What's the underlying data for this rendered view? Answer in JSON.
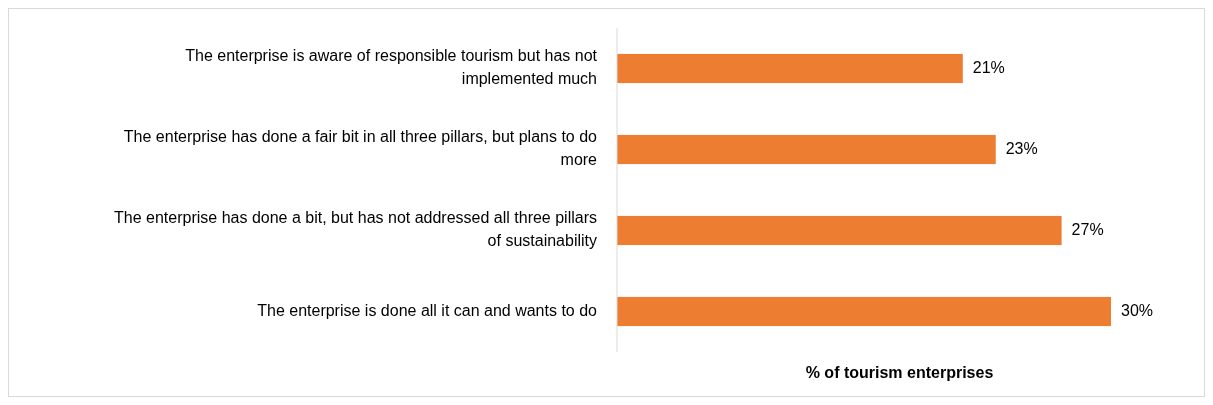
{
  "chart_data": {
    "type": "bar",
    "orientation": "horizontal",
    "xlabel": "% of tourism enterprises",
    "categories": [
      "The enterprise is aware of responsible tourism but has not implemented much",
      "The enterprise has done a fair bit in all three pillars, but plans to do more",
      "The enterprise has done a bit, but has not addressed all three pillars of sustainability",
      "The enterprise is done all it can and wants to do"
    ],
    "values": [
      21,
      23,
      27,
      30
    ],
    "color": "#ed7d31",
    "value_labels": [
      "21%",
      "23%",
      "27%",
      "30%"
    ]
  }
}
